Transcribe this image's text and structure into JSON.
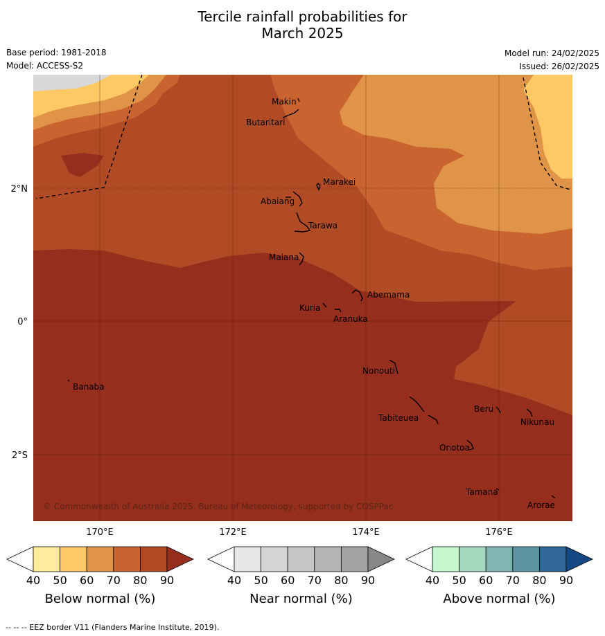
{
  "title_line1": "Tercile rainfall probabilities for",
  "title_line2": "March 2025",
  "base_period": "Base period: 1981-2018",
  "model": "Model: ACCESS-S2",
  "model_run": "Model run: 24/02/2025",
  "issued": "Issued: 26/02/2025",
  "copyright": "© Commonwealth of Australia 2025, Bureau of Meteorology, supported by COSPPac",
  "footer": "--  --  -- EEZ border V11 (Flanders Marine Institute, 2019).",
  "lat_labels": [
    "2°N",
    "0°",
    "2°S"
  ],
  "lon_labels": [
    "170°E",
    "172°E",
    "174°E",
    "176°E"
  ],
  "islands": [
    "Makin",
    "Butaritari",
    "Marakei",
    "Abaiang",
    "Tarawa",
    "Maiana",
    "Abemama",
    "Kuria",
    "Aranuka",
    "Banaba",
    "Nonouti",
    "Beru",
    "Tabiteuea",
    "Nikunau",
    "Onotoa",
    "Tamana",
    "Arorae"
  ],
  "colorbars": [
    {
      "label": "Below normal (%)",
      "ticks": [
        "40",
        "50",
        "60",
        "70",
        "80",
        "90"
      ],
      "colors": [
        "#ffffff",
        "#ffeb9b",
        "#fdc964",
        "#e09448",
        "#c96430",
        "#b04b25",
        "#962e1d"
      ]
    },
    {
      "label": "Near normal (%)",
      "ticks": [
        "40",
        "50",
        "60",
        "70",
        "80",
        "90"
      ],
      "colors": [
        "#ffffff",
        "#e7e7e7",
        "#d5d5d5",
        "#c6c6c6",
        "#b4b4b4",
        "#a2a2a2",
        "#878787"
      ]
    },
    {
      "label": "Above normal (%)",
      "ticks": [
        "40",
        "50",
        "60",
        "70",
        "80",
        "90"
      ],
      "colors": [
        "#ffffff",
        "#c6f7cf",
        "#a4d8bf",
        "#80b6b1",
        "#5d94a4",
        "#30679a",
        "#124985"
      ]
    }
  ]
}
